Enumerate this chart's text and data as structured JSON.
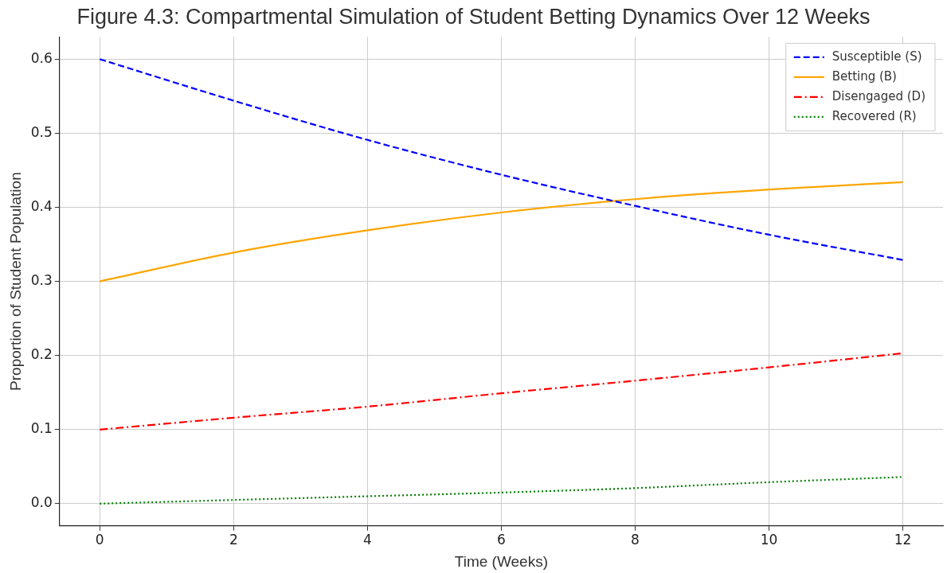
{
  "chart_data": {
    "type": "line",
    "title": "Figure 4.3: Compartmental Simulation of Student Betting Dynamics Over 12 Weeks",
    "xlabel": "Time (Weeks)",
    "ylabel": "Proportion of Student Population",
    "x": [
      0,
      2,
      4,
      6,
      8,
      10,
      12
    ],
    "series": [
      {
        "name": "Susceptible (S)",
        "color": "#0000ff",
        "line_style": "dashed",
        "values": [
          0.6,
          0.544,
          0.491,
          0.444,
          0.402,
          0.363,
          0.329
        ]
      },
      {
        "name": "Betting (B)",
        "color": "#ffa500",
        "line_style": "solid",
        "values": [
          0.3,
          0.339,
          0.369,
          0.393,
          0.411,
          0.424,
          0.434
        ]
      },
      {
        "name": "Disengaged (D)",
        "color": "#ff0000",
        "line_style": "dashdot",
        "values": [
          0.1,
          0.116,
          0.131,
          0.149,
          0.166,
          0.184,
          0.203
        ]
      },
      {
        "name": "Recovered (R)",
        "color": "#008000",
        "line_style": "dotted",
        "values": [
          0,
          0.005,
          0.01,
          0.015,
          0.021,
          0.029,
          0.036
        ]
      }
    ],
    "xlim": [
      -0.6,
      12.6
    ],
    "xticks": [
      0,
      2,
      4,
      6,
      8,
      10,
      12
    ],
    "ylim": [
      -0.03,
      0.63
    ],
    "yticks": [
      {
        "value": 0,
        "label": "0.0"
      },
      {
        "value": 0.1,
        "label": "0.1"
      },
      {
        "value": 0.2,
        "label": "0.2"
      },
      {
        "value": 0.3,
        "label": "0.3"
      },
      {
        "value": 0.4,
        "label": "0.4"
      },
      {
        "value": 0.5,
        "label": "0.5"
      },
      {
        "value": 0.6,
        "label": "0.6"
      }
    ],
    "grid": true,
    "legend": "top right",
    "marker": "none"
  }
}
